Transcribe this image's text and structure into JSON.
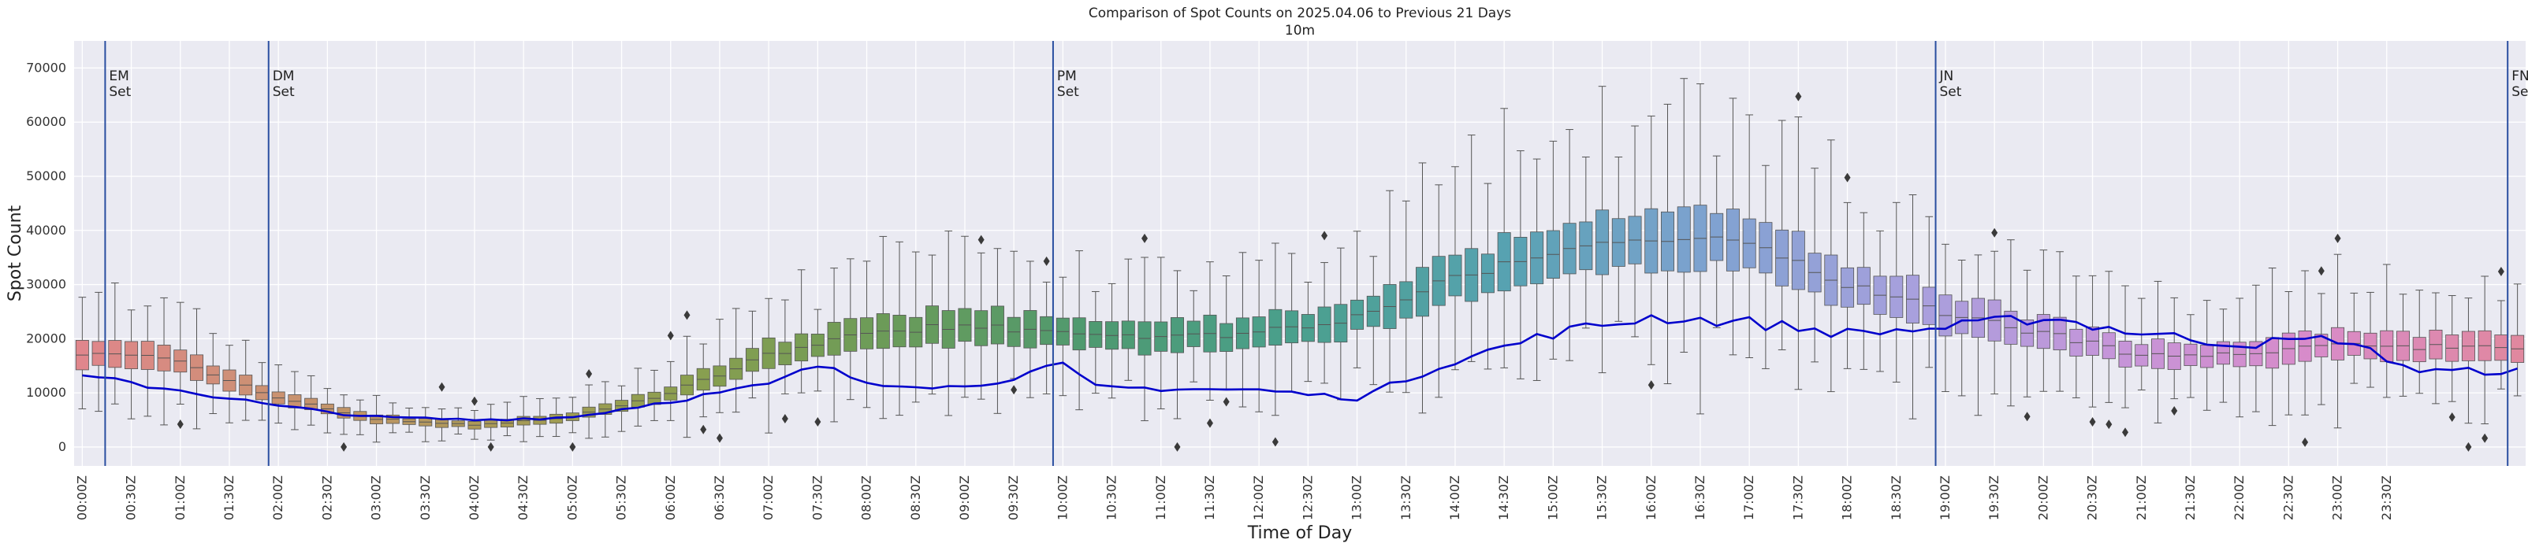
{
  "chart_data": {
    "type": "box",
    "title": "Comparison of Spot Counts on 2025.04.06 to Previous 21 Days",
    "subtitle": "10m",
    "xlabel": "Time of Day",
    "ylabel": "Spot Count",
    "ylim": [
      -3500,
      75000
    ],
    "yticks": [
      0,
      10000,
      20000,
      30000,
      40000,
      50000,
      60000,
      70000
    ],
    "xticks": [
      "00:00Z",
      "00:30Z",
      "01:00Z",
      "01:30Z",
      "02:00Z",
      "02:30Z",
      "03:00Z",
      "03:30Z",
      "04:00Z",
      "04:30Z",
      "05:00Z",
      "05:30Z",
      "06:00Z",
      "06:30Z",
      "07:00Z",
      "07:30Z",
      "08:00Z",
      "08:30Z",
      "09:00Z",
      "09:30Z",
      "10:00Z",
      "10:30Z",
      "11:00Z",
      "11:30Z",
      "12:00Z",
      "12:30Z",
      "13:00Z",
      "13:30Z",
      "14:00Z",
      "14:30Z",
      "15:00Z",
      "15:30Z",
      "16:00Z",
      "16:30Z",
      "17:00Z",
      "17:30Z",
      "18:00Z",
      "18:30Z",
      "19:00Z",
      "19:30Z",
      "20:00Z",
      "20:30Z",
      "21:00Z",
      "21:30Z",
      "22:00Z",
      "22:30Z",
      "23:00Z",
      "23:30Z"
    ],
    "grid": true,
    "box_medians_anchor": [
      [
        0,
        17500
      ],
      [
        6,
        16000
      ],
      [
        12,
        9000
      ],
      [
        18,
        5200
      ],
      [
        24,
        4000
      ],
      [
        30,
        5500
      ],
      [
        36,
        10000
      ],
      [
        42,
        17000
      ],
      [
        48,
        21000
      ],
      [
        54,
        22500
      ],
      [
        60,
        21000
      ],
      [
        66,
        20000
      ],
      [
        72,
        21000
      ],
      [
        78,
        24000
      ],
      [
        84,
        31000
      ],
      [
        90,
        36000
      ],
      [
        96,
        39000
      ],
      [
        102,
        37000
      ],
      [
        108,
        30000
      ],
      [
        114,
        25000
      ],
      [
        120,
        21000
      ],
      [
        126,
        17000
      ],
      [
        132,
        17000
      ],
      [
        138,
        19000
      ],
      [
        143,
        18500
      ]
    ],
    "series": [
      {
        "name": "2025.04.06",
        "color": "#0000cc",
        "anchors": [
          [
            0,
            13000
          ],
          [
            6,
            10500
          ],
          [
            12,
            7500
          ],
          [
            18,
            5500
          ],
          [
            24,
            5000
          ],
          [
            30,
            5500
          ],
          [
            36,
            8500
          ],
          [
            42,
            11500
          ],
          [
            45,
            15000
          ],
          [
            48,
            12000
          ],
          [
            54,
            11000
          ],
          [
            60,
            15000
          ],
          [
            62,
            11000
          ],
          [
            72,
            10500
          ],
          [
            78,
            9000
          ],
          [
            84,
            16000
          ],
          [
            90,
            21000
          ],
          [
            96,
            24000
          ],
          [
            102,
            23000
          ],
          [
            108,
            21000
          ],
          [
            114,
            22000
          ],
          [
            120,
            24000
          ],
          [
            126,
            21000
          ],
          [
            132,
            19000
          ],
          [
            138,
            20000
          ],
          [
            143,
            14000
          ]
        ]
      }
    ],
    "vertical_markers": [
      {
        "label_line1": "EM",
        "label_line2": "Set",
        "x_index": 2
      },
      {
        "label_line1": "DM",
        "label_line2": "Set",
        "x_index": 12
      },
      {
        "label_line1": "PM",
        "label_line2": "Set",
        "x_index": 60
      },
      {
        "label_line1": "JN",
        "label_line2": "Set",
        "x_index": 114
      },
      {
        "label_line1": "FN",
        "label_line2": "Set",
        "x_index": 149
      }
    ],
    "n_boxes": 150,
    "hue_palette": [
      "#e0868c",
      "#c99270",
      "#ab9a56",
      "#8a9f4f",
      "#6a9b59",
      "#4e9a71",
      "#4aa08e",
      "#57a2b1",
      "#7ea2d0",
      "#a7a0dd",
      "#c595d9",
      "#d88bc9",
      "#e0889f"
    ],
    "marker_color": "#2a4ea0",
    "background_color": "#eaeaf2"
  }
}
